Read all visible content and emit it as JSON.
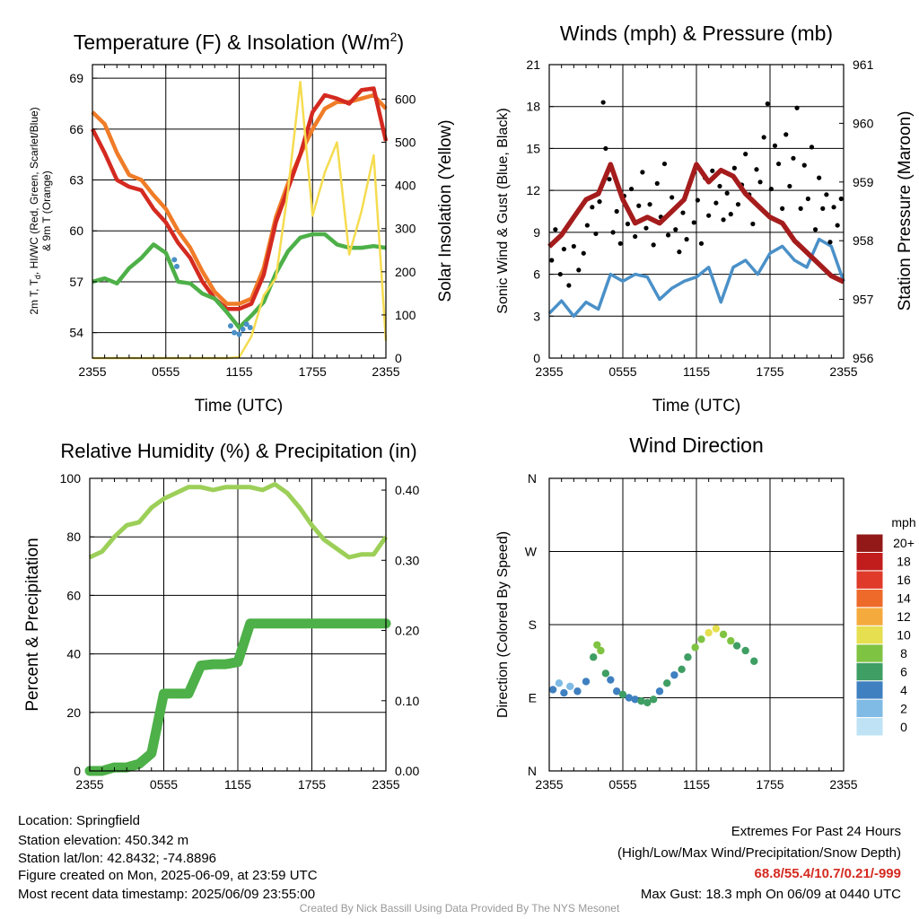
{
  "chart_data": [
    {
      "type": "line",
      "title": "Temperature (F) & Insolation (W/m",
      "title_sup": "2",
      "title_end": ")",
      "xlabel": "Time (UTC)",
      "ylabel_lines": [
        "2m T, T",
        "d",
        ", HI/WC (Red, Green, Scarlet/Blue)",
        "& 9m T (Orange)"
      ],
      "y2label": "Solar Insolation (Yellow)",
      "x_ticks": [
        "2355",
        "0555",
        "1155",
        "1755",
        "2355"
      ],
      "ylim": [
        52.5,
        69.8
      ],
      "y_ticks": [
        54,
        57,
        60,
        63,
        66,
        69
      ],
      "y2lim": [
        0,
        680
      ],
      "y2_ticks": [
        0,
        100,
        200,
        300,
        400,
        500,
        600
      ],
      "x_hours": [
        0,
        1,
        2,
        3,
        4,
        5,
        6,
        7,
        8,
        9,
        10,
        11,
        12,
        13,
        14,
        15,
        16,
        17,
        18,
        19,
        20,
        21,
        22,
        23,
        24
      ],
      "series": [
        {
          "name": "9m T",
          "color": "#f07c28",
          "values": [
            67.0,
            66.3,
            64.6,
            63.3,
            63.0,
            62.1,
            61.3,
            60.0,
            59.0,
            57.6,
            56.4,
            55.7,
            55.7,
            56.0,
            57.8,
            60.8,
            62.8,
            64.5,
            66.0,
            67.2,
            67.6,
            67.6,
            67.8,
            68.0,
            67.2
          ]
        },
        {
          "name": "2m T",
          "color": "#d42a20",
          "values": [
            66.0,
            64.6,
            63.0,
            62.6,
            62.4,
            61.3,
            60.5,
            59.3,
            58.4,
            57.0,
            56.0,
            55.4,
            55.4,
            55.7,
            57.4,
            60.5,
            62.5,
            64.5,
            67.0,
            68.0,
            67.8,
            67.5,
            68.3,
            68.4,
            65.3
          ]
        },
        {
          "name": "Td",
          "color": "#4db048",
          "values": [
            57.0,
            57.2,
            56.9,
            57.8,
            58.4,
            59.2,
            58.7,
            57.0,
            56.9,
            56.3,
            56.0,
            55.2,
            54.3,
            55.0,
            55.8,
            57.5,
            58.8,
            59.6,
            59.8,
            59.8,
            59.2,
            59.0,
            59.0,
            59.1,
            59.0
          ]
        },
        {
          "name": "Solar Insolation",
          "color": "#f5dc50",
          "axis": "y2",
          "values": [
            0,
            0,
            0,
            0,
            0,
            0,
            0,
            0,
            0,
            0,
            0,
            0,
            2,
            50,
            145,
            185,
            390,
            640,
            330,
            430,
            500,
            240,
            340,
            470,
            40
          ]
        }
      ],
      "wc_points": {
        "name": "HI/WC",
        "color": "#4a90c8",
        "points": [
          [
            6.7,
            58.3
          ],
          [
            6.9,
            57.9
          ],
          [
            11.3,
            54.4
          ],
          [
            11.6,
            54.0
          ],
          [
            12.0,
            53.9
          ],
          [
            12.3,
            54.2
          ],
          [
            12.6,
            54.5
          ],
          [
            12.9,
            54.3
          ]
        ]
      }
    },
    {
      "type": "line",
      "title": "Winds (mph) & Pressure (mb)",
      "xlabel": "Time (UTC)",
      "ylabel": "Sonic Wind & Gust (Blue, Black)",
      "y2label": "Station Pressure (Maroon)",
      "x_ticks": [
        "2355",
        "0555",
        "1155",
        "1755",
        "2355"
      ],
      "ylim": [
        0,
        21
      ],
      "y_ticks": [
        0,
        3,
        6,
        9,
        12,
        15,
        18,
        21
      ],
      "y2lim": [
        956,
        961
      ],
      "y2_ticks": [
        956,
        957,
        958,
        959,
        960,
        961
      ],
      "x_hours": [
        0,
        1,
        2,
        3,
        4,
        5,
        6,
        7,
        8,
        9,
        10,
        11,
        12,
        13,
        14,
        15,
        16,
        17,
        18,
        19,
        20,
        21,
        22,
        23,
        24
      ],
      "series": [
        {
          "name": "Sonic Wind",
          "color": "#4a90c8",
          "values": [
            3.2,
            4.1,
            3.0,
            4.0,
            3.5,
            6.0,
            5.5,
            6.0,
            5.8,
            4.2,
            5.0,
            5.5,
            5.8,
            6.5,
            4.0,
            6.5,
            7.0,
            6.0,
            7.5,
            8.0,
            7.0,
            6.5,
            8.5,
            8.0,
            5.5
          ]
        },
        {
          "name": "Station Pressure",
          "color": "#a51c1c",
          "axis": "y2",
          "values": [
            957.9,
            958.1,
            958.4,
            958.7,
            958.8,
            959.3,
            958.7,
            958.3,
            958.4,
            958.3,
            958.5,
            958.7,
            959.3,
            959.0,
            959.2,
            959.1,
            958.8,
            958.6,
            958.4,
            958.3,
            958.0,
            957.8,
            957.6,
            957.4,
            957.3
          ]
        }
      ],
      "gusts": {
        "name": "Gust",
        "color": "#000000",
        "points": [
          [
            0.2,
            7.0
          ],
          [
            0.5,
            9.2
          ],
          [
            0.9,
            6.0
          ],
          [
            1.2,
            7.8
          ],
          [
            1.6,
            5.2
          ],
          [
            2.0,
            8.0
          ],
          [
            2.4,
            6.3
          ],
          [
            2.8,
            7.5
          ],
          [
            3.1,
            9.5
          ],
          [
            3.5,
            10.8
          ],
          [
            3.8,
            8.9
          ],
          [
            4.1,
            11.2
          ],
          [
            4.4,
            18.3
          ],
          [
            4.6,
            15.0
          ],
          [
            4.9,
            12.8
          ],
          [
            5.2,
            9.0
          ],
          [
            5.5,
            10.5
          ],
          [
            5.8,
            8.2
          ],
          [
            6.1,
            11.6
          ],
          [
            6.4,
            9.6
          ],
          [
            6.7,
            12.1
          ],
          [
            7.0,
            8.7
          ],
          [
            7.3,
            10.9
          ],
          [
            7.6,
            13.3
          ],
          [
            7.9,
            9.3
          ],
          [
            8.2,
            11.0
          ],
          [
            8.5,
            8.1
          ],
          [
            8.8,
            12.5
          ],
          [
            9.1,
            10.1
          ],
          [
            9.4,
            13.9
          ],
          [
            9.7,
            8.8
          ],
          [
            10.0,
            11.5
          ],
          [
            10.3,
            9.2
          ],
          [
            10.6,
            7.6
          ],
          [
            10.9,
            10.4
          ],
          [
            11.2,
            8.5
          ],
          [
            11.5,
            12.6
          ],
          [
            11.8,
            9.7
          ],
          [
            12.1,
            11.3
          ],
          [
            12.4,
            8.2
          ],
          [
            12.7,
            12.9
          ],
          [
            13.0,
            10.2
          ],
          [
            13.3,
            13.4
          ],
          [
            13.6,
            11.1
          ],
          [
            13.9,
            12.3
          ],
          [
            14.2,
            9.9
          ],
          [
            14.5,
            11.8
          ],
          [
            14.8,
            10.3
          ],
          [
            15.1,
            13.6
          ],
          [
            15.4,
            11.0
          ],
          [
            15.7,
            12.4
          ],
          [
            16.0,
            14.6
          ],
          [
            16.3,
            11.7
          ],
          [
            16.6,
            9.6
          ],
          [
            16.9,
            13.5
          ],
          [
            17.2,
            12.6
          ],
          [
            17.5,
            15.8
          ],
          [
            17.8,
            18.2
          ],
          [
            18.1,
            12.1
          ],
          [
            18.4,
            15.2
          ],
          [
            18.7,
            13.9
          ],
          [
            19.0,
            10.7
          ],
          [
            19.3,
            16.0
          ],
          [
            19.6,
            12.3
          ],
          [
            19.9,
            14.3
          ],
          [
            20.2,
            17.9
          ],
          [
            20.5,
            10.7
          ],
          [
            20.8,
            13.8
          ],
          [
            21.1,
            11.4
          ],
          [
            21.4,
            15.1
          ],
          [
            21.7,
            9.2
          ],
          [
            22.0,
            12.9
          ],
          [
            22.3,
            10.7
          ],
          [
            22.6,
            11.7
          ],
          [
            22.9,
            8.3
          ],
          [
            23.2,
            10.8
          ],
          [
            23.5,
            9.5
          ],
          [
            23.8,
            11.4
          ]
        ]
      }
    },
    {
      "type": "line",
      "title": "Relative Humidity (%) & Precipitation (in)",
      "ylabel": "Percent & Precipitation",
      "x_ticks": [
        "2355",
        "0555",
        "1155",
        "1755",
        "2355"
      ],
      "ylim": [
        0,
        100
      ],
      "y_ticks": [
        0,
        20,
        40,
        60,
        80,
        100
      ],
      "y2lim": [
        0,
        0.4167
      ],
      "y2_ticks": [
        "0.00",
        "0.10",
        "0.20",
        "0.30",
        "0.40"
      ],
      "x_hours": [
        0,
        1,
        2,
        3,
        4,
        5,
        6,
        7,
        8,
        9,
        10,
        11,
        12,
        13,
        14,
        15,
        16,
        17,
        18,
        19,
        20,
        21,
        22,
        23,
        24
      ],
      "series": [
        {
          "name": "Relative Humidity",
          "color": "#9ccf58",
          "values": [
            73,
            75,
            80,
            84,
            85,
            90,
            93,
            95,
            97,
            97,
            96,
            97,
            97,
            97,
            96,
            98,
            95,
            90,
            84,
            79,
            76,
            73,
            74,
            74,
            80
          ]
        },
        {
          "name": "Precipitation",
          "color": "#4db048",
          "axis": "y2",
          "values": [
            0.0,
            0.0,
            0.005,
            0.005,
            0.01,
            0.025,
            0.11,
            0.11,
            0.11,
            0.15,
            0.152,
            0.152,
            0.155,
            0.21,
            0.21,
            0.21,
            0.21,
            0.21,
            0.21,
            0.21,
            0.21,
            0.21,
            0.21,
            0.21,
            0.21
          ]
        }
      ]
    },
    {
      "type": "scatter",
      "title": "Wind Direction",
      "ylabel": "Direction (Colored By Speed)",
      "x_ticks": [
        "2355",
        "0555",
        "1155",
        "1755",
        "2355"
      ],
      "y_ticks": [
        "N",
        "E",
        "S",
        "W",
        "N"
      ],
      "ylim": [
        0,
        360
      ],
      "colorbar": {
        "unit": "mph",
        "labels": [
          "0",
          "2",
          "4",
          "6",
          "8",
          "10",
          "12",
          "14",
          "16",
          "18",
          "20+"
        ],
        "colors": [
          "#bfe3f5",
          "#7fbbe4",
          "#3f80c0",
          "#3f9e63",
          "#7fc342",
          "#e6df4f",
          "#f5aa3e",
          "#ee6a2b",
          "#df3a2a",
          "#c11d1d",
          "#931818"
        ]
      },
      "points": [
        [
          0.3,
          100,
          4
        ],
        [
          0.8,
          108,
          2
        ],
        [
          1.2,
          96,
          4
        ],
        [
          1.7,
          104,
          2
        ],
        [
          2.3,
          98,
          3
        ],
        [
          3.0,
          110,
          4
        ],
        [
          3.6,
          140,
          6
        ],
        [
          3.9,
          155,
          8
        ],
        [
          4.2,
          148,
          7
        ],
        [
          4.6,
          120,
          5
        ],
        [
          5.0,
          112,
          4
        ],
        [
          5.5,
          98,
          3
        ],
        [
          6.0,
          94,
          5
        ],
        [
          6.5,
          90,
          4
        ],
        [
          7.0,
          88,
          4
        ],
        [
          7.5,
          86,
          5
        ],
        [
          8.0,
          84,
          6
        ],
        [
          8.5,
          88,
          5
        ],
        [
          9.0,
          98,
          4
        ],
        [
          9.6,
          108,
          5
        ],
        [
          10.2,
          118,
          4
        ],
        [
          10.8,
          125,
          5
        ],
        [
          11.3,
          140,
          6
        ],
        [
          11.9,
          152,
          7
        ],
        [
          12.4,
          162,
          8
        ],
        [
          13.0,
          170,
          9
        ],
        [
          13.6,
          175,
          10
        ],
        [
          14.2,
          168,
          8
        ],
        [
          14.8,
          160,
          7
        ],
        [
          15.3,
          154,
          6
        ],
        [
          16.0,
          148,
          5
        ],
        [
          16.7,
          135,
          5
        ]
      ],
      "x_max": 24
    }
  ],
  "info": {
    "location": "Location: Springfield",
    "elevation": "Station elevation: 450.342 m",
    "latlon": "Station lat/lon: 42.8432; -74.8896",
    "created": "Figure created on Mon, 2025-06-09, at 23:59 UTC",
    "recent": "Most recent data timestamp: 2025/06/09 23:55:00"
  },
  "extremes": {
    "heading": "Extremes For Past 24 Hours",
    "subheading": "(High/Low/Max Wind/Precipitation/Snow Depth)",
    "values": "68.8/55.4/10.7/0.21/-999",
    "max_gust": "Max Gust: 18.3 mph On 06/09 at 0440 UTC"
  },
  "credit": "Created By Nick Bassill Using Data Provided By The NYS Mesonet"
}
